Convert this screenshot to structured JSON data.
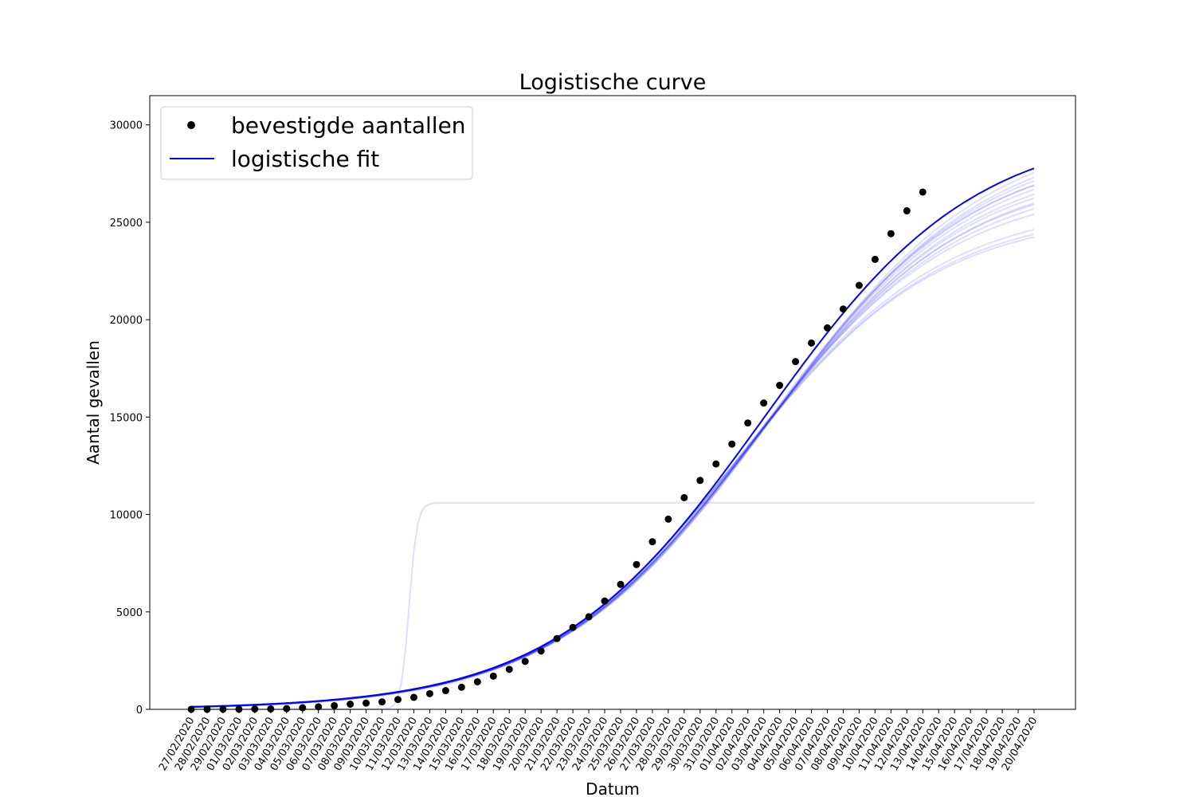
{
  "chart_data": {
    "type": "line",
    "title": "Logistische curve",
    "xlabel": "Datum",
    "ylabel": "Aantal gevallen",
    "ylim": [
      0,
      31500
    ],
    "yticks": [
      0,
      5000,
      10000,
      15000,
      20000,
      25000,
      30000
    ],
    "grid": false,
    "legend_position": "top-left",
    "categories": [
      "27/02/2020",
      "28/02/2020",
      "29/02/2020",
      "01/03/2020",
      "02/03/2020",
      "03/03/2020",
      "04/03/2020",
      "05/03/2020",
      "06/03/2020",
      "07/03/2020",
      "08/03/2020",
      "09/03/2020",
      "10/03/2020",
      "11/03/2020",
      "12/03/2020",
      "13/03/2020",
      "14/03/2020",
      "15/03/2020",
      "16/03/2020",
      "17/03/2020",
      "18/03/2020",
      "19/03/2020",
      "20/03/2020",
      "21/03/2020",
      "22/03/2020",
      "23/03/2020",
      "24/03/2020",
      "25/03/2020",
      "26/03/2020",
      "27/03/2020",
      "28/03/2020",
      "29/03/2020",
      "30/03/2020",
      "31/03/2020",
      "01/04/2020",
      "02/04/2020",
      "03/04/2020",
      "04/04/2020",
      "05/04/2020",
      "06/04/2020",
      "07/04/2020",
      "08/04/2020",
      "09/04/2020",
      "10/04/2020",
      "11/04/2020",
      "12/04/2020",
      "13/04/2020",
      "14/04/2020",
      "15/04/2020",
      "16/04/2020",
      "17/04/2020",
      "18/04/2020",
      "19/04/2020",
      "20/04/2020"
    ],
    "series": [
      {
        "name": "bevestigde aantallen",
        "kind": "scatter",
        "color": "#000000",
        "values": [
          1,
          2,
          7,
          10,
          18,
          24,
          38,
          82,
          128,
          188,
          265,
          321,
          382,
          503,
          614,
          804,
          959,
          1135,
          1413,
          1705,
          2051,
          2460,
          2994,
          3631,
          4204,
          4749,
          5560,
          6412,
          7431,
          8603,
          9762,
          10866,
          11750,
          12595,
          13614,
          14697,
          15723,
          16627,
          17851,
          18803,
          19580,
          20549,
          21762,
          23097,
          24413,
          25587,
          26551
        ]
      },
      {
        "name": "logistische fit",
        "kind": "line",
        "color": "#0000ff",
        "model": {
          "L": 29900,
          "x0": 36.0,
          "k": 0.151
        },
        "ensemble_color": "#0000ff"
      }
    ]
  }
}
